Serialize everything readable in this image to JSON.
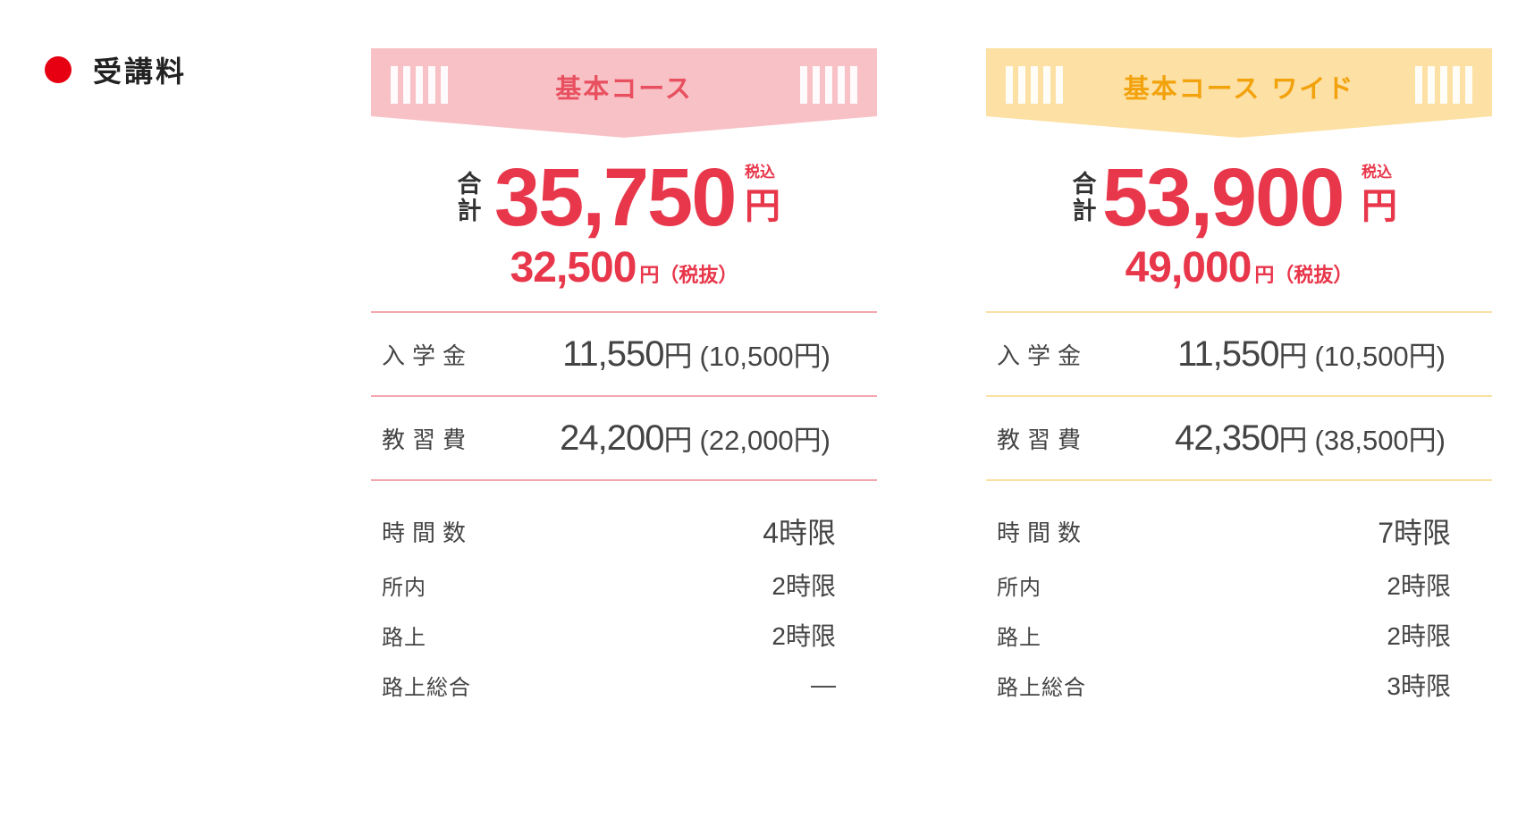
{
  "section": {
    "title": "受講料",
    "dot_color": "#e60012"
  },
  "courses": [
    {
      "name": "基本コース",
      "banner_color": "#f8c1c6",
      "title_color": "#e8505f",
      "total_label": "合計",
      "total": "35,750",
      "tax_in": "税込",
      "yen": "円",
      "sub_total": "32,500",
      "sub_unit": "円（税抜）",
      "fees": [
        {
          "label": "入学金",
          "value": "11,550",
          "unit": "円",
          "ex": "(10,500円)"
        },
        {
          "label": "教習費",
          "value": "24,200",
          "unit": "円",
          "ex": "(22,000円)"
        }
      ],
      "hours": [
        {
          "label": "時間数",
          "value": "4時限"
        },
        {
          "label": "所内",
          "value": "2時限"
        },
        {
          "label": "路上",
          "value": "2時限"
        },
        {
          "label": "路上総合",
          "value": "—"
        }
      ]
    },
    {
      "name": "基本コース ワイド",
      "banner_color": "#fde0a3",
      "title_color": "#f2a20c",
      "total_label": "合計",
      "total": "53,900",
      "tax_in": "税込",
      "yen": "円",
      "sub_total": "49,000",
      "sub_unit": "円（税抜）",
      "fees": [
        {
          "label": "入学金",
          "value": "11,550",
          "unit": "円",
          "ex": "(10,500円)"
        },
        {
          "label": "教習費",
          "value": "42,350",
          "unit": "円",
          "ex": "(38,500円)"
        }
      ],
      "hours": [
        {
          "label": "時間数",
          "value": "7時限"
        },
        {
          "label": "所内",
          "value": "2時限"
        },
        {
          "label": "路上",
          "value": "2時限"
        },
        {
          "label": "路上総合",
          "value": "3時限"
        }
      ]
    }
  ]
}
